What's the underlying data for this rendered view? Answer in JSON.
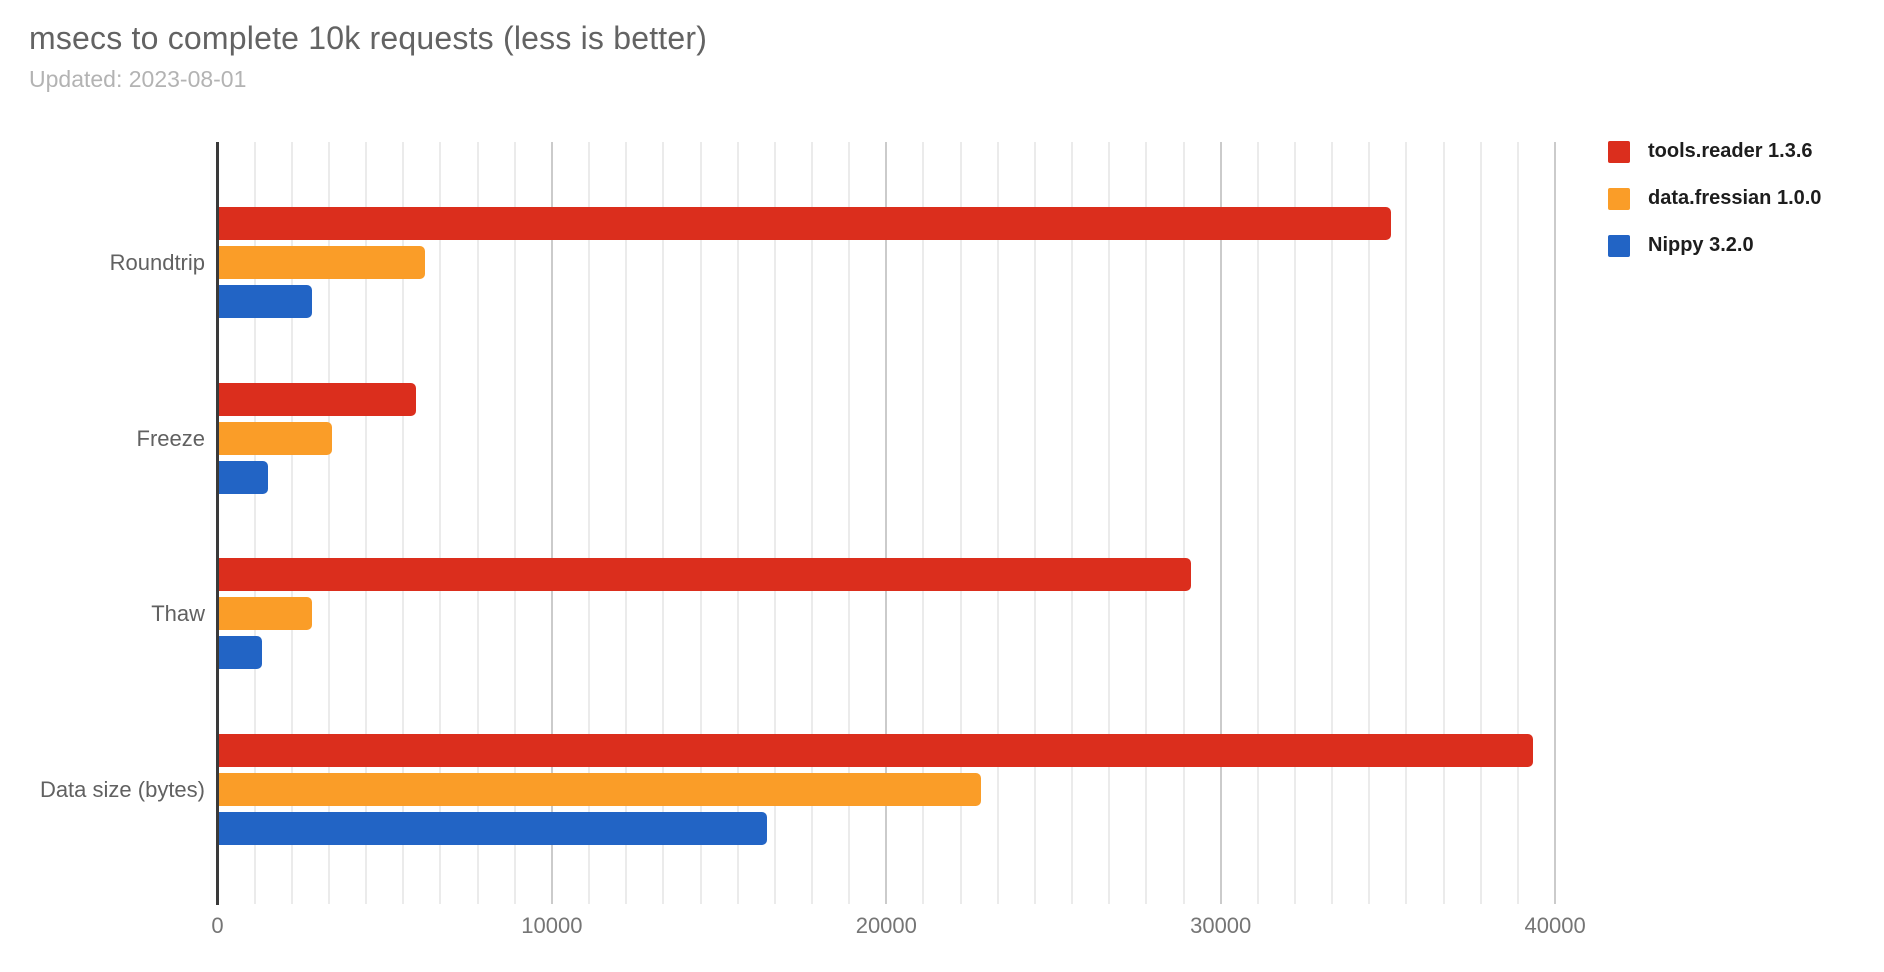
{
  "title": "msecs to complete 10k requests (less is better)",
  "subtitle": "Updated: 2023-08-01",
  "colors": {
    "series_red": "#DB2E1D",
    "series_orange": "#FA9D28",
    "series_blue": "#2264C5",
    "title_gray": "#636363",
    "subtitle_gray": "#B3B3B3",
    "axis_label_gray": "#757575",
    "gridline_minor": "#EBEBEB",
    "gridline_major": "#CBCBCB",
    "axis_line": "#3A3A3A"
  },
  "chart_data": {
    "type": "bar",
    "orientation": "horizontal",
    "title": "msecs to complete 10k requests (less is better)",
    "subtitle": "Updated: 2023-08-01",
    "categories": [
      "Roundtrip",
      "Freeze",
      "Thaw",
      "Data size (bytes)"
    ],
    "series": [
      {
        "name": "tools.reader 1.3.6",
        "color": "#DB2E1D",
        "values": [
          35100,
          5930,
          29100,
          39330
        ]
      },
      {
        "name": "data.fressian 1.0.0",
        "color": "#FA9D28",
        "values": [
          6200,
          3420,
          2820,
          22840
        ]
      },
      {
        "name": "Nippy 3.2.0",
        "color": "#2264C5",
        "values": [
          2820,
          1500,
          1340,
          16440
        ]
      }
    ],
    "x_axis": {
      "label": "",
      "ticks": [
        0,
        10000,
        20000,
        30000,
        40000
      ],
      "max": 40330,
      "minor_divisions_per_major": 9
    },
    "y_axis": {
      "label": ""
    },
    "grid": true,
    "legend_position": "right"
  }
}
